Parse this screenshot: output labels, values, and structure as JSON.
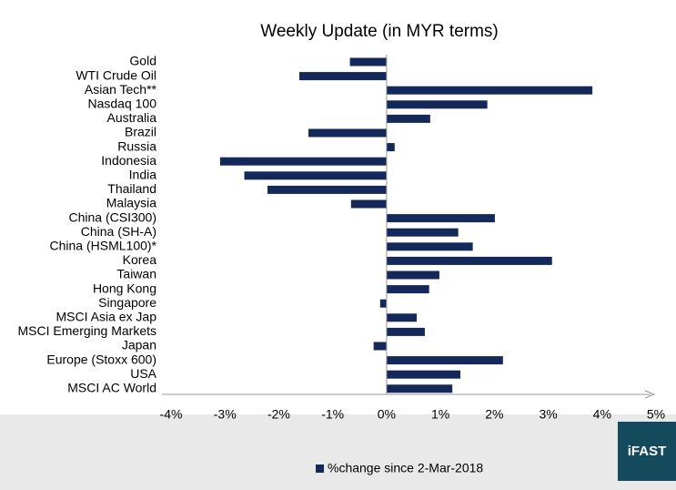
{
  "chart_data": {
    "type": "hbar",
    "title": "Weekly Update (in MYR terms)",
    "categories": [
      "Gold",
      "WTI Crude Oil",
      "Asian Tech**",
      "Nasdaq 100",
      "Australia",
      "Brazil",
      "Russia",
      "Indonesia",
      "India",
      "Thailand",
      "Malaysia",
      "China (CSI300)",
      "China (SH-A)",
      "China (HSML100)*",
      "Korea",
      "Taiwan",
      "Hong Kong",
      "Singapore",
      "MSCI Asia ex Jap",
      "MSCI Emerging Markets",
      "Japan",
      "Europe (Stoxx 600)",
      "USA",
      "MSCI AC World"
    ],
    "series": [
      {
        "name": "%change since 2-Mar-2018",
        "color": "#14285a",
        "values": [
          -0.68,
          -1.62,
          3.82,
          1.87,
          0.81,
          -1.45,
          0.15,
          -3.09,
          -2.64,
          -2.21,
          -0.66,
          2.01,
          1.33,
          1.6,
          3.07,
          0.98,
          0.79,
          -0.12,
          0.56,
          0.71,
          -0.24,
          2.16,
          1.37,
          1.22
        ]
      }
    ],
    "xlim": [
      -4,
      5
    ],
    "xticks": [
      {
        "value": -4,
        "label": "-4%"
      },
      {
        "value": -3,
        "label": "-3%"
      },
      {
        "value": -2,
        "label": "-2%"
      },
      {
        "value": -1,
        "label": "-1%"
      },
      {
        "value": 0,
        "label": "0%"
      },
      {
        "value": 1,
        "label": "1%"
      },
      {
        "value": 2,
        "label": "2%"
      },
      {
        "value": 3,
        "label": "3%"
      },
      {
        "value": 4,
        "label": "4%"
      },
      {
        "value": 5,
        "label": "5%"
      }
    ],
    "logo": "iFAST"
  }
}
